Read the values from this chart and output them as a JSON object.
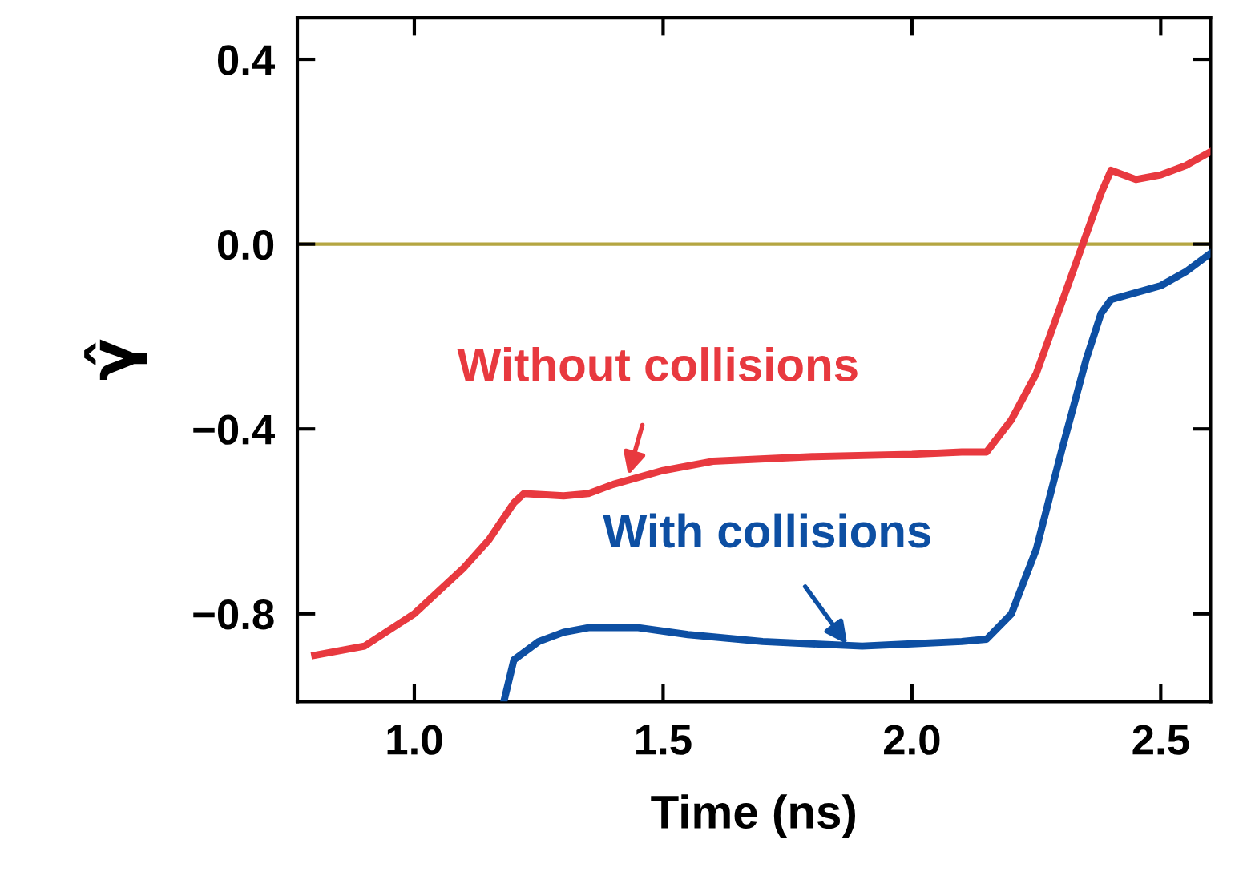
{
  "chart_data": {
    "type": "line",
    "xlabel": "Time (ns)",
    "ylabel": "γ̂",
    "xlim": [
      0.765,
      2.6
    ],
    "ylim": [
      -0.99,
      0.49
    ],
    "xticks": [
      {
        "value": 1.0,
        "label": "1.0"
      },
      1.5,
      {
        "value": 2.0,
        "label": "2.0"
      },
      2.5
    ],
    "yticks": [
      0.4,
      {
        "value": 0.0,
        "label": "0.0"
      },
      {
        "value": -0.4,
        "label": "−0.4"
      },
      {
        "value": -0.8,
        "label": "−0.8"
      }
    ],
    "grid": false,
    "legend": false,
    "marker": "none",
    "line_style": "solid",
    "ref_lines": [
      {
        "axis": "y",
        "value": 0.0,
        "label": null,
        "color": "#b5a642"
      }
    ],
    "series": [
      {
        "color": "#e8393f",
        "x": [
          0.8,
          0.9,
          1.0,
          1.1,
          1.15,
          1.2,
          1.22,
          1.3,
          1.35,
          1.4,
          1.5,
          1.6,
          1.8,
          2.0,
          2.1,
          2.15,
          2.2,
          2.25,
          2.3,
          2.35,
          2.38,
          2.4,
          2.45,
          2.5,
          2.55,
          2.6
        ],
        "values": [
          -0.89,
          -0.87,
          -0.8,
          -0.7,
          -0.64,
          -0.56,
          -0.54,
          -0.545,
          -0.54,
          -0.52,
          -0.49,
          -0.47,
          -0.46,
          -0.455,
          -0.45,
          -0.45,
          -0.38,
          -0.28,
          -0.13,
          0.02,
          0.11,
          0.16,
          0.14,
          0.15,
          0.17,
          0.2
        ]
      },
      {
        "color": "#0d4fa3",
        "x": [
          1.18,
          1.2,
          1.25,
          1.3,
          1.35,
          1.45,
          1.55,
          1.7,
          1.9,
          2.0,
          2.1,
          2.15,
          2.2,
          2.25,
          2.3,
          2.35,
          2.38,
          2.4,
          2.5,
          2.55,
          2.6
        ],
        "values": [
          -0.99,
          -0.9,
          -0.86,
          -0.84,
          -0.83,
          -0.83,
          -0.845,
          -0.86,
          -0.87,
          -0.865,
          -0.86,
          -0.855,
          -0.8,
          -0.66,
          -0.45,
          -0.25,
          -0.15,
          -0.12,
          -0.09,
          -0.06,
          -0.02
        ]
      }
    ],
    "annotations": [
      {
        "text": "Without collisions",
        "x": 1.43,
        "y": -0.5
      },
      {
        "text": "With collisions",
        "x": 1.87,
        "y": -0.866
      }
    ]
  }
}
